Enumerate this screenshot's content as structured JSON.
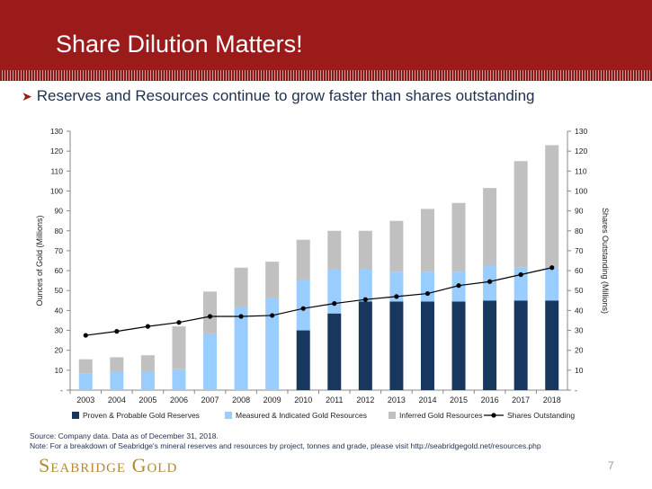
{
  "slide": {
    "title": "Share Dilution Matters!",
    "bullet": "Reserves and Resources continue to grow faster than shares outstanding",
    "source": "Source: Company data.  Data as of December 31, 2018.",
    "note": "Note:  For a breakdown of Seabridge's mineral reserves and resources by project, tonnes and grade, please visit http://seabridgegold.net/resources.php",
    "logo": "Seabridge Gold",
    "page_number": "7"
  },
  "colors": {
    "header": "#9b1b1b",
    "proven": "#17375e",
    "measured": "#99ccff",
    "inferred": "#c0c0c0",
    "shares": "#000000",
    "logo": "#b28a36"
  },
  "chart_data": {
    "type": "bar",
    "stacked": true,
    "categories": [
      "2003",
      "2004",
      "2005",
      "2006",
      "2007",
      "2008",
      "2009",
      "2010",
      "2011",
      "2012",
      "2013",
      "2014",
      "2015",
      "2016",
      "2017",
      "2018"
    ],
    "series": [
      {
        "name": "Proven & Probable Gold Reserves",
        "axis": "left",
        "values": [
          0,
          0,
          0,
          0,
          0,
          0,
          0,
          30,
          38.5,
          44.5,
          44.5,
          44.5,
          44.5,
          45,
          45,
          45
        ]
      },
      {
        "name": "Measured & Indicated Gold Resources",
        "axis": "left",
        "values": [
          8.5,
          9.5,
          9.5,
          10.5,
          28.5,
          42,
          46.5,
          25.5,
          22,
          16,
          15,
          15,
          15,
          17.5,
          16.5,
          16.5
        ]
      },
      {
        "name": "Inferred Gold Resources",
        "axis": "left",
        "values": [
          7,
          7,
          8,
          21.5,
          21,
          19.5,
          18,
          20,
          19.5,
          19.5,
          25.5,
          31.5,
          34.5,
          39,
          53.5,
          61.5
        ]
      },
      {
        "name": "Shares Outstanding",
        "axis": "right",
        "type": "line",
        "values": [
          27.5,
          29.5,
          32,
          34,
          37,
          37,
          37.5,
          41,
          43.5,
          45.5,
          47,
          48.5,
          52.5,
          54.5,
          58,
          61.5
        ]
      }
    ],
    "ylabel": "Ounces of Gold (Millions)",
    "y2label": "Shares Outstanding (Millions)",
    "ylim": [
      0,
      130
    ],
    "y2lim": [
      0,
      130
    ],
    "yticks": [
      "-",
      "10",
      "20",
      "30",
      "40",
      "50",
      "60",
      "70",
      "80",
      "90",
      "100",
      "110",
      "120",
      "130"
    ],
    "grid": false,
    "legend_position": "bottom"
  }
}
